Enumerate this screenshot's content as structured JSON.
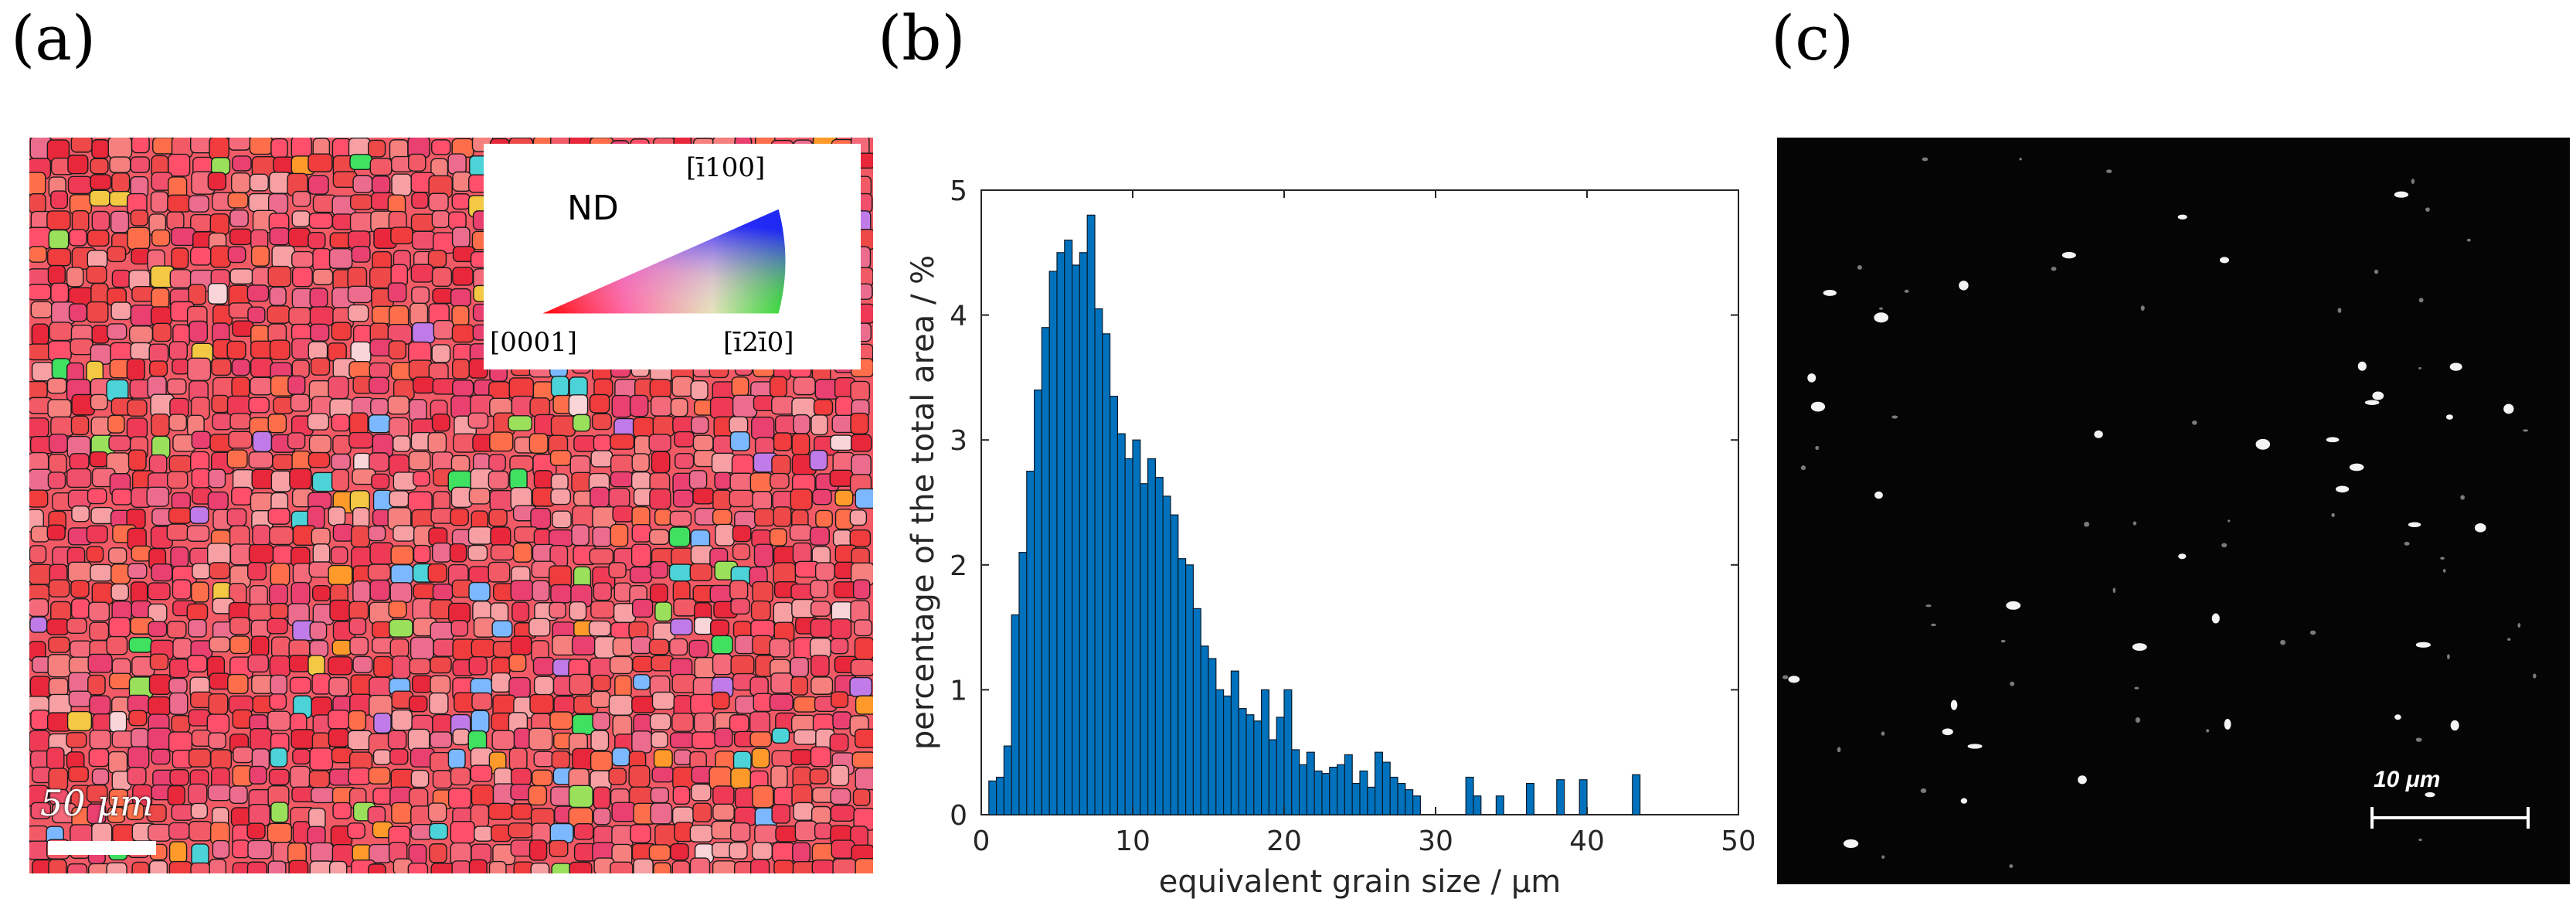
{
  "panels": {
    "a": {
      "label": "(a)",
      "legend": {
        "nd": "ND",
        "top_direction": "[ī100]",
        "left_direction": "[0001]",
        "right_direction": "[ī2ī0]"
      },
      "scale_bar": "50 μm"
    },
    "b": {
      "label": "(b)"
    },
    "c": {
      "label": "(c)",
      "scale_bar": "10 μm"
    }
  },
  "colors": {
    "bar_fill": "#0072bd",
    "bar_edge": "#0a1a2a",
    "ebsd_base": "#f25a66",
    "micrograph_bg": "#050505"
  },
  "chart_data": {
    "type": "bar",
    "title": "",
    "xlabel": "equivalent grain size / μm",
    "ylabel": "percentage of the total area / %",
    "xlim": [
      0,
      50
    ],
    "ylim": [
      0,
      5
    ],
    "xticks": [
      0,
      10,
      20,
      30,
      40,
      50
    ],
    "yticks": [
      0,
      1,
      2,
      3,
      4,
      5
    ],
    "bin_width": 0.5,
    "bin_starts": [
      0.5,
      1.0,
      1.5,
      2.0,
      2.5,
      3.0,
      3.5,
      4.0,
      4.5,
      5.0,
      5.5,
      6.0,
      6.5,
      7.0,
      7.5,
      8.0,
      8.5,
      9.0,
      9.5,
      10.0,
      10.5,
      11.0,
      11.5,
      12.0,
      12.5,
      13.0,
      13.5,
      14.0,
      14.5,
      15.0,
      15.5,
      16.0,
      16.5,
      17.0,
      17.5,
      18.0,
      18.5,
      19.0,
      19.5,
      20.0,
      20.5,
      21.0,
      21.5,
      22.0,
      22.5,
      23.0,
      23.5,
      24.0,
      24.5,
      25.0,
      25.5,
      26.0,
      26.5,
      27.0,
      27.5,
      28.0,
      28.5,
      32.0,
      32.5,
      34.0,
      36.0,
      38.0,
      39.5,
      43.0
    ],
    "values": [
      0.27,
      0.3,
      0.55,
      1.6,
      2.1,
      2.75,
      3.4,
      3.9,
      4.35,
      4.5,
      4.6,
      4.4,
      4.5,
      4.8,
      4.05,
      3.85,
      3.35,
      3.05,
      2.85,
      3.0,
      2.65,
      2.85,
      2.7,
      2.55,
      2.4,
      2.05,
      2.0,
      1.65,
      1.35,
      1.25,
      1.0,
      0.95,
      1.15,
      0.85,
      0.8,
      0.75,
      1.0,
      0.6,
      0.78,
      1.0,
      0.52,
      0.4,
      0.5,
      0.35,
      0.33,
      0.38,
      0.4,
      0.48,
      0.25,
      0.35,
      0.22,
      0.5,
      0.42,
      0.3,
      0.25,
      0.2,
      0.15,
      0.3,
      0.15,
      0.15,
      0.25,
      0.28,
      0.28,
      0.32
    ]
  }
}
